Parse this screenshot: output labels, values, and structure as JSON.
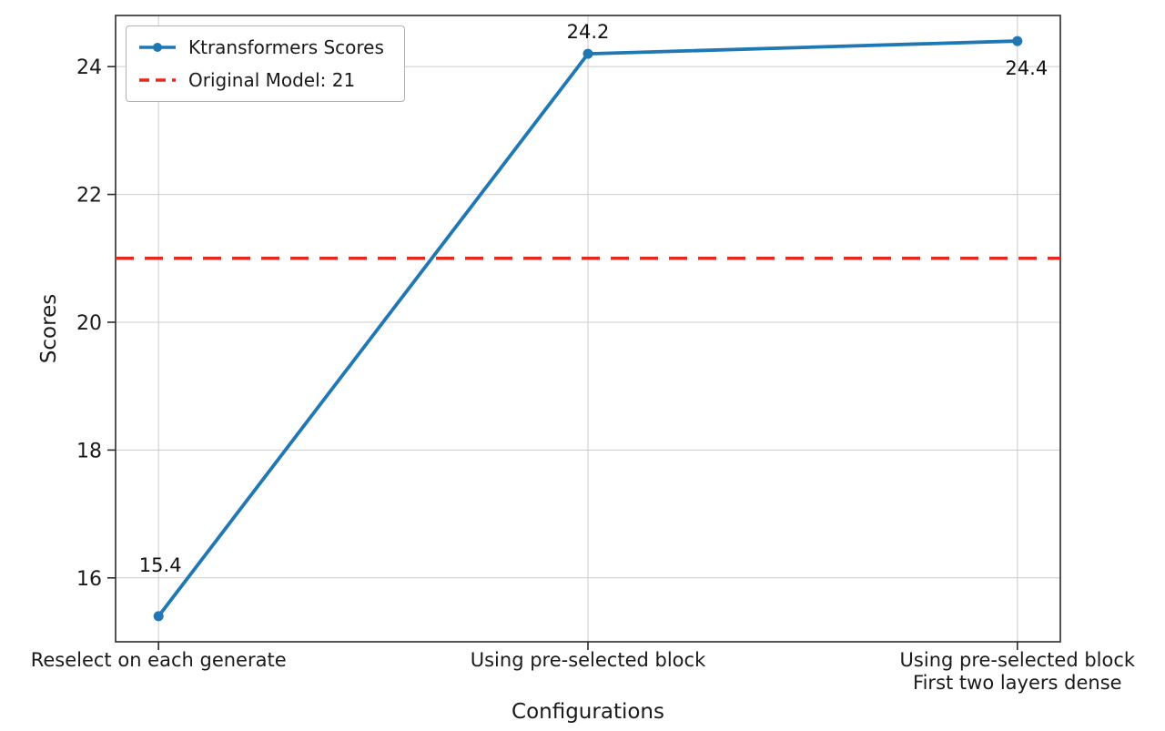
{
  "chart_data": {
    "type": "line",
    "title": "",
    "xlabel": "Configurations",
    "ylabel": "Scores",
    "categories": [
      "Reselect on each generate",
      "Using pre-selected block",
      "Using pre-selected block\nFirst two layers dense"
    ],
    "series": [
      {
        "name": "Ktransformers Scores",
        "values": [
          15.4,
          24.2,
          24.4
        ],
        "point_labels": [
          "15.4",
          "24.2",
          "24.4"
        ],
        "color": "#1f77b4",
        "marker": "circle"
      }
    ],
    "reference_line": {
      "label": "Original Model: 21",
      "value": 21,
      "color": "#e8281e",
      "style": "dashed"
    },
    "yticks": [
      16,
      18,
      20,
      22,
      24
    ],
    "ylim": [
      15.0,
      24.8
    ],
    "grid": true,
    "grid_color": "#cccccc",
    "axis_color": "#2b2b2b",
    "text_color": "#1a1a1a",
    "legend_position": "upper-left"
  }
}
